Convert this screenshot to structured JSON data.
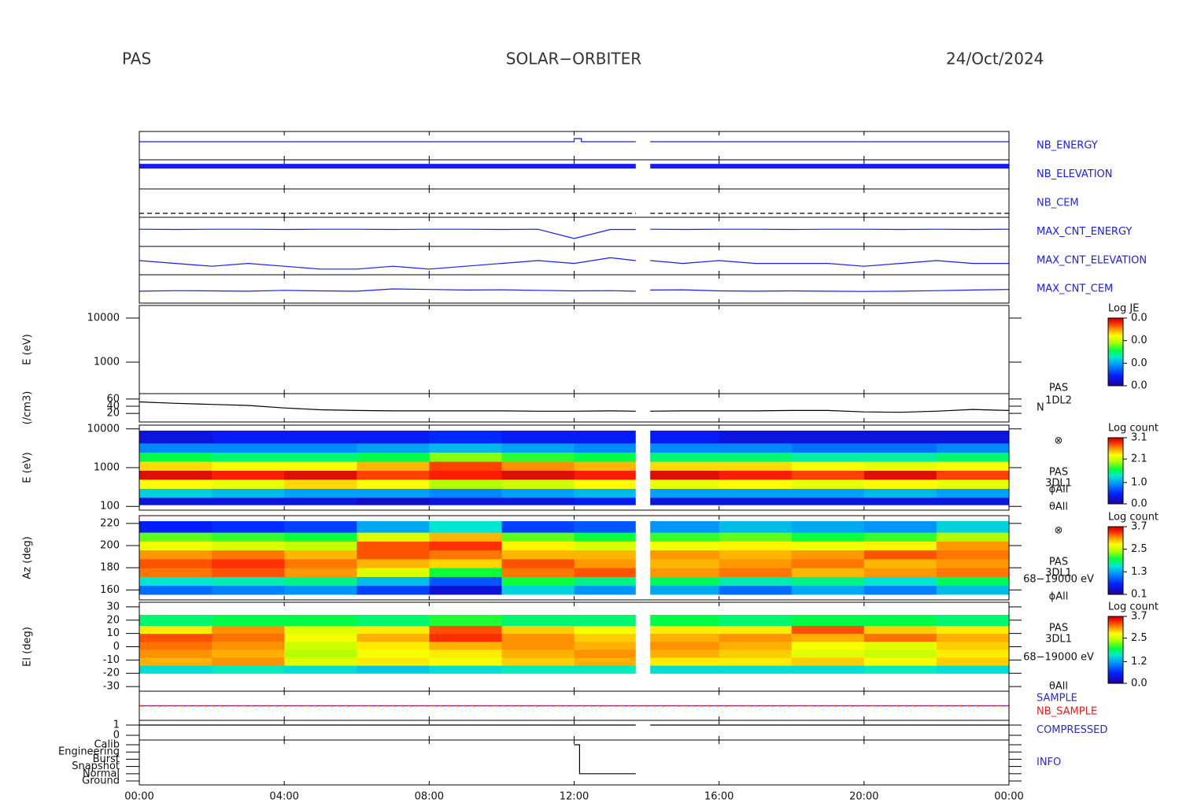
{
  "header": {
    "instrument": "PAS",
    "mission": "SOLAR−ORBITER",
    "date": "24/Oct/2024"
  },
  "chart_data": [
    {
      "type": "line",
      "ylim": [
        0,
        10
      ],
      "x": [
        0,
        12,
        12,
        12.2,
        12.2,
        13.7,
        13.9,
        14.1,
        24
      ],
      "series": [
        {
          "name": "NB_ENERGY",
          "color": "#1a1aff",
          "values": [
            6.4,
            6.4,
            7.5,
            7.5,
            6.4,
            6.4,
            null,
            6.4,
            6.4
          ]
        }
      ]
    },
    {
      "type": "line",
      "ylim": [
        0,
        10
      ],
      "x": [
        0,
        13.7,
        13.9,
        14.1,
        24
      ],
      "line_width": 6,
      "series": [
        {
          "name": "NB_ELEVATION",
          "color": "#1a1aff",
          "values": [
            7.8,
            7.8,
            null,
            7.8,
            7.8
          ]
        }
      ]
    },
    {
      "type": "line",
      "ylim": [
        0,
        10
      ],
      "x": [
        0,
        13.7,
        13.9,
        14.1,
        24
      ],
      "dash": true,
      "series": [
        {
          "name": "NB_CEM",
          "color": "#000000",
          "values": [
            1.4,
            1.4,
            null,
            1.4,
            1.4
          ]
        }
      ]
    },
    {
      "type": "line",
      "ylim": [
        0,
        10
      ],
      "x": [
        0,
        1,
        2,
        3,
        4,
        5,
        6,
        7,
        8,
        9,
        10,
        11,
        12,
        13,
        13.7,
        13.9,
        14.1,
        15,
        16,
        17,
        18,
        19,
        20,
        21,
        22,
        23,
        24
      ],
      "series": [
        {
          "name": "MAX_CNT_ENERGY",
          "color": "#1a1aff",
          "values": [
            5.9,
            5.8,
            5.9,
            5.9,
            5.8,
            5.9,
            5.9,
            5.8,
            5.9,
            5.9,
            5.8,
            5.9,
            2.7,
            5.8,
            5.8,
            null,
            5.9,
            5.8,
            5.9,
            5.9,
            5.8,
            5.9,
            5.9,
            5.8,
            5.9,
            5.8,
            5.9
          ]
        }
      ]
    },
    {
      "type": "line",
      "ylim": [
        0,
        10
      ],
      "x": [
        0,
        1,
        2,
        3,
        4,
        5,
        6,
        7,
        8,
        9,
        10,
        11,
        12,
        13,
        13.7,
        13.9,
        14.1,
        15,
        16,
        17,
        18,
        19,
        20,
        21,
        22,
        23,
        24
      ],
      "series": [
        {
          "name": "MAX_CNT_ELEVATION",
          "color": "#1a1aff",
          "values": [
            5,
            4,
            3,
            4,
            3,
            2,
            2,
            3,
            2,
            3,
            4,
            5,
            4,
            6,
            5,
            null,
            5,
            4,
            5,
            4,
            4,
            4,
            3,
            4,
            5,
            4,
            4
          ]
        }
      ]
    },
    {
      "type": "line",
      "ylim": [
        0,
        10
      ],
      "x": [
        0,
        1,
        2,
        3,
        4,
        5,
        6,
        7,
        8,
        9,
        10,
        11,
        12,
        13,
        13.7,
        13.9,
        14.1,
        15,
        16,
        17,
        18,
        19,
        20,
        21,
        22,
        23,
        24
      ],
      "series": [
        {
          "name": "MAX_CNT_CEM",
          "color": "#1a1aff",
          "values": [
            4.2,
            4.4,
            4.3,
            4.2,
            4.5,
            4.3,
            4.2,
            5.0,
            4.8,
            4.6,
            4.7,
            4.5,
            4.3,
            4.4,
            4.2,
            null,
            4.6,
            4.7,
            4.3,
            4.2,
            4.3,
            4.2,
            4.1,
            4.2,
            4.4,
            4.6,
            4.8
          ]
        }
      ]
    },
    {
      "type": "empty",
      "ylabel": "E (eV)",
      "log": true,
      "ylim": [
        193,
        19300
      ],
      "yticks": [
        1000,
        10000
      ],
      "colorbar": {
        "title": "Log JE",
        "clim": [
          0,
          0.03
        ],
        "ticks": [
          {
            "value": 0.03,
            "label": "0.0"
          },
          {
            "value": 0.02,
            "label": "0.0"
          },
          {
            "value": 0.01,
            "label": "0.0"
          },
          {
            "value": 0,
            "label": "0.0"
          }
        ]
      }
    },
    {
      "type": "line",
      "ylabel": "(/cm3)",
      "ylim": [
        -4,
        75
      ],
      "yticks": [
        20,
        40,
        60
      ],
      "annotations": [
        "PAS",
        "1DL2"
      ],
      "x": [
        0,
        1,
        2,
        3,
        4,
        5,
        6,
        7,
        8,
        9,
        10,
        11,
        12,
        13,
        13.7,
        13.9,
        14.1,
        15,
        16,
        17,
        18,
        19,
        20,
        21,
        22,
        23,
        24
      ],
      "series": [
        {
          "name": "N",
          "color": "#000000",
          "values": [
            52,
            48,
            45,
            42,
            35,
            30,
            28,
            27,
            27,
            27,
            27,
            26,
            26,
            27,
            26,
            null,
            26,
            27,
            27,
            27,
            28,
            28,
            24,
            23,
            26,
            31,
            28
          ]
        }
      ]
    },
    {
      "type": "spectrogram",
      "ylabel": "E (eV)",
      "log": true,
      "ylim": [
        80,
        12500
      ],
      "yticks": [
        100,
        1000,
        10000
      ],
      "annotations": [
        "⊗",
        "PAS",
        "3DL1",
        "ϕAll",
        "θAll"
      ],
      "gap": [
        13.7,
        14.1
      ],
      "xbins": [
        0,
        2,
        4,
        6,
        8,
        10,
        12,
        14,
        16,
        18,
        20,
        22,
        24
      ],
      "ybins": [
        110,
        170,
        290,
        500,
        850,
        1450,
        2500,
        4300,
        9000
      ],
      "z": [
        [
          0.3,
          0.3,
          0.3,
          0.2,
          0.3,
          0.3,
          0.4,
          0.3,
          0.3,
          0.3,
          0.3,
          0.3
        ],
        [
          1.2,
          1.1,
          1.0,
          1.0,
          0.9,
          1.0,
          1.1,
          1.0,
          1.0,
          1.0,
          1.1,
          1.0
        ],
        [
          2.3,
          2.2,
          2.4,
          2.3,
          2.0,
          2.1,
          2.3,
          2.2,
          2.3,
          2.2,
          2.3,
          2.2
        ],
        [
          3.0,
          2.9,
          3.0,
          2.8,
          2.9,
          3.0,
          2.9,
          3.0,
          2.9,
          2.8,
          3.0,
          2.8
        ],
        [
          2.4,
          2.3,
          2.3,
          2.5,
          2.8,
          2.6,
          2.5,
          2.4,
          2.4,
          2.3,
          2.2,
          2.3
        ],
        [
          1.6,
          1.5,
          1.5,
          1.6,
          1.9,
          1.7,
          1.6,
          1.5,
          1.5,
          1.4,
          1.4,
          1.5
        ],
        [
          0.9,
          0.9,
          0.9,
          1.0,
          1.1,
          1.0,
          0.9,
          0.9,
          0.9,
          0.8,
          0.8,
          0.9
        ],
        [
          0.3,
          0.4,
          0.4,
          0.4,
          0.5,
          0.4,
          0.4,
          0.4,
          0.3,
          0.3,
          0.3,
          0.3
        ]
      ],
      "colorbar": {
        "title": "Log count",
        "clim": [
          0,
          3.1
        ],
        "ticks": [
          3.1,
          2.1,
          {
            "value": 1,
            "label": "1.0"
          },
          {
            "value": 0,
            "label": "0.0"
          }
        ]
      }
    },
    {
      "type": "spectrogram",
      "ylabel": "Az (deg)",
      "ylim": [
        151,
        227
      ],
      "yticks": [
        160,
        180,
        200,
        220
      ],
      "annotations": [
        "⊗",
        "PAS",
        "3DL1",
        "68−19000 eV",
        "ϕAll"
      ],
      "gap": [
        13.7,
        14.1
      ],
      "xbins": [
        0,
        2,
        4,
        6,
        8,
        10,
        12,
        14,
        16,
        18,
        20,
        22,
        24
      ],
      "ybins": [
        156,
        164,
        172,
        180,
        188,
        196,
        204,
        212,
        222
      ],
      "z": [
        [
          1.0,
          1.1,
          1.2,
          0.8,
          0.4,
          1.5,
          1.2,
          1.3,
          1.0,
          1.3,
          1.1,
          1.4
        ],
        [
          1.6,
          1.7,
          1.8,
          1.4,
          0.9,
          2.0,
          1.8,
          1.9,
          1.7,
          1.8,
          1.6,
          1.9
        ],
        [
          3.2,
          3.3,
          3.1,
          2.6,
          2.0,
          3.2,
          3.3,
          3.1,
          3.2,
          3.0,
          3.1,
          3.2
        ],
        [
          3.3,
          3.4,
          3.2,
          3.0,
          2.9,
          3.3,
          3.1,
          3.0,
          3.1,
          3.2,
          3.0,
          3.1
        ],
        [
          3.1,
          3.2,
          3.0,
          3.3,
          3.2,
          3.0,
          3.0,
          3.1,
          3.0,
          3.1,
          3.3,
          3.2
        ],
        [
          2.7,
          2.6,
          2.5,
          3.3,
          3.4,
          2.8,
          2.6,
          2.7,
          2.8,
          2.7,
          2.8,
          3.1
        ],
        [
          2.2,
          2.1,
          2.0,
          2.6,
          3.0,
          2.2,
          2.0,
          2.1,
          2.2,
          2.0,
          2.1,
          2.4
        ],
        [
          0.6,
          0.7,
          0.8,
          1.3,
          1.6,
          0.8,
          0.9,
          1.2,
          1.4,
          1.3,
          1.2,
          1.5
        ]
      ],
      "colorbar": {
        "title": "Log count",
        "clim": [
          0.1,
          3.7
        ],
        "ticks": [
          3.7,
          2.5,
          1.3,
          0.1
        ]
      }
    },
    {
      "type": "spectrogram",
      "ylabel": "El (deg)",
      "ylim": [
        -33.5,
        33.5
      ],
      "yticks": [
        -30,
        -20,
        -10,
        0,
        10,
        20,
        30
      ],
      "annotations": [
        "PAS",
        "3DL1",
        "68−19000 eV",
        "θAll"
      ],
      "gap": [
        13.7,
        14.1
      ],
      "xbins": [
        0,
        2,
        4,
        6,
        8,
        10,
        12,
        14,
        16,
        18,
        20,
        22,
        24
      ],
      "ybins": [
        -20,
        -14,
        -8,
        -2,
        4,
        10,
        16,
        24
      ],
      "z": [
        [
          1.5,
          1.6,
          1.5,
          1.4,
          1.5,
          1.6,
          1.6,
          1.5,
          1.5,
          1.5,
          1.6,
          1.5
        ],
        [
          3.0,
          3.1,
          2.6,
          2.8,
          2.7,
          2.9,
          3.0,
          2.8,
          2.8,
          2.9,
          2.7,
          2.9
        ],
        [
          3.1,
          3.0,
          2.4,
          2.7,
          2.8,
          3.0,
          3.1,
          3.0,
          2.9,
          2.6,
          2.5,
          2.8
        ],
        [
          3.2,
          3.1,
          2.5,
          2.8,
          3.0,
          3.1,
          3.0,
          3.1,
          3.0,
          2.7,
          2.6,
          2.9
        ],
        [
          3.3,
          3.2,
          2.7,
          3.0,
          3.4,
          3.1,
          2.9,
          3.0,
          3.1,
          3.0,
          3.2,
          3.0
        ],
        [
          2.8,
          3.1,
          2.6,
          2.8,
          3.3,
          2.9,
          2.7,
          2.8,
          2.8,
          3.3,
          2.9,
          2.8
        ],
        [
          1.8,
          1.9,
          1.9,
          1.8,
          2.0,
          1.8,
          1.8,
          1.9,
          1.8,
          1.9,
          1.9,
          1.8
        ]
      ],
      "colorbar": {
        "title": "Log count",
        "clim": [
          0,
          3.7
        ],
        "ticks": [
          3.7,
          2.5,
          1.2,
          {
            "value": 0,
            "label": "0.0"
          }
        ]
      }
    },
    {
      "type": "line",
      "ylim": [
        -0.12,
        0.12
      ],
      "x": [
        0,
        24
      ],
      "dash": true,
      "series": [
        {
          "name": "SAMPLE",
          "color": "#2a2ad0",
          "values": [
            0,
            0
          ]
        },
        {
          "name": "NB_SAMPLE",
          "color": "#e02020",
          "values": [
            0,
            0
          ]
        }
      ]
    },
    {
      "type": "line",
      "ylim": [
        -0.46,
        1.46
      ],
      "yticks": [
        0,
        1
      ],
      "x": [
        0,
        13.7,
        13.9,
        14.1,
        24
      ],
      "series": [
        {
          "name": "COMPRESSED",
          "color": "#000000",
          "values": [
            1,
            1,
            null,
            1,
            1
          ]
        }
      ]
    },
    {
      "type": "line",
      "ylim": [
        -0.54,
        5.65
      ],
      "xlim": [
        0,
        24
      ],
      "yticks": [
        {
          "value": 5,
          "label": "Calib"
        },
        {
          "value": 4,
          "label": "Engineering"
        },
        {
          "value": 3,
          "label": "Burst"
        },
        {
          "value": 2,
          "label": "Snapshot"
        },
        {
          "value": 1,
          "label": "Normal"
        },
        {
          "value": 0,
          "label": "Ground"
        }
      ],
      "xticks": [
        {
          "value": 0,
          "label": "00:00"
        },
        {
          "value": 4,
          "label": "04:00"
        },
        {
          "value": 8,
          "label": "08:00"
        },
        {
          "value": 12,
          "label": "12:00"
        },
        {
          "value": 16,
          "label": "16:00"
        },
        {
          "value": 20,
          "label": "20:00"
        },
        {
          "value": 24,
          "label": "00:00"
        }
      ],
      "x": [
        12,
        12.15,
        12.15,
        13.7
      ],
      "series": [
        {
          "name": "INFO",
          "color": "#000000",
          "values": [
            5,
            5,
            1,
            1
          ]
        }
      ]
    }
  ]
}
